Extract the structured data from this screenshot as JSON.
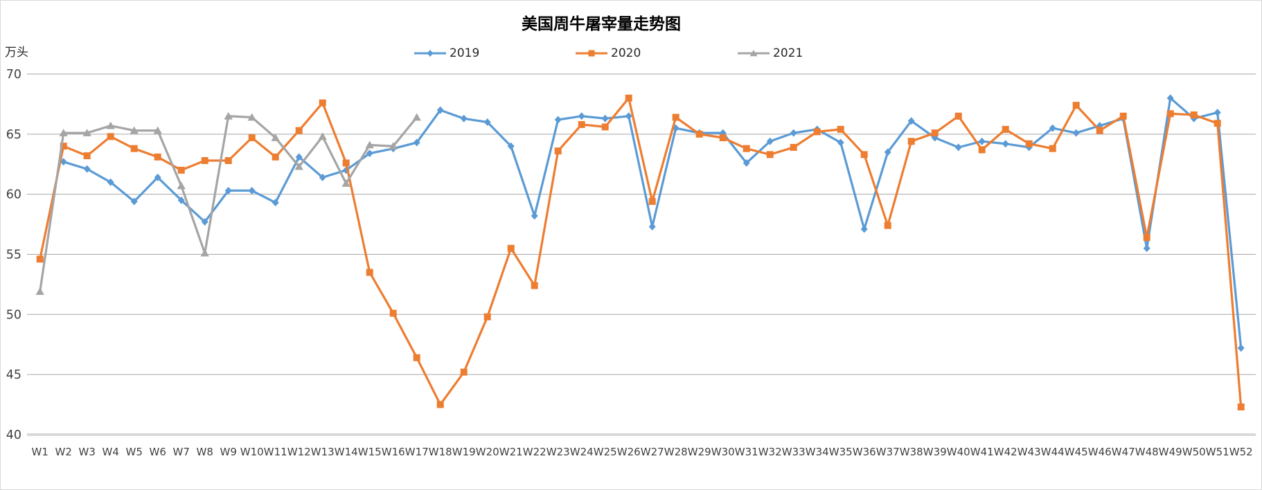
{
  "title": "美国周牛屠宰量走势图",
  "unit_label": "万头",
  "legend": {
    "items": [
      "2019",
      "2020",
      "2021"
    ]
  },
  "colors": {
    "series_2019": "#5B9BD5",
    "series_2020": "#ED7D31",
    "series_2021": "#A5A5A5",
    "gridline": "#A6A6A6",
    "axis_line": "#D9D9D9",
    "tick_text": "#404040"
  },
  "chart_data": {
    "type": "line",
    "title": "美国周牛屠宰量走势图",
    "ylabel": "万头",
    "ylim": [
      40,
      70
    ],
    "yticks": [
      70,
      65,
      60,
      55,
      50,
      45,
      40
    ],
    "grid": true,
    "legend_position": "top",
    "categories": [
      "W1",
      "W2",
      "W3",
      "W4",
      "W5",
      "W6",
      "W7",
      "W8",
      "W9",
      "W10",
      "W11",
      "W12",
      "W13",
      "W14",
      "W15",
      "W16",
      "W17",
      "W18",
      "W19",
      "W20",
      "W21",
      "W22",
      "W23",
      "W24",
      "W25",
      "W26",
      "W27",
      "W28",
      "W29",
      "W30",
      "W31",
      "W32",
      "W33",
      "W34",
      "W35",
      "W36",
      "W37",
      "W38",
      "W39",
      "W40",
      "W41",
      "W42",
      "W43",
      "W44",
      "W45",
      "W46",
      "W47",
      "W48",
      "W49",
      "W50",
      "W51",
      "W52"
    ],
    "series": [
      {
        "name": "2019",
        "color": "#5B9BD5",
        "marker": "diamond",
        "values": [
          null,
          62.7,
          62.1,
          61.0,
          59.4,
          61.4,
          59.5,
          57.7,
          60.3,
          60.3,
          59.3,
          63.1,
          61.4,
          62.0,
          63.4,
          63.8,
          64.3,
          67.0,
          66.3,
          66.0,
          64.0,
          58.2,
          66.2,
          66.5,
          66.3,
          66.5,
          57.3,
          65.5,
          65.1,
          65.1,
          62.6,
          64.4,
          65.1,
          65.4,
          64.3,
          57.1,
          63.5,
          66.1,
          64.7,
          63.9,
          64.4,
          64.2,
          63.9,
          65.5,
          65.1,
          65.7,
          66.3,
          55.5,
          68.0,
          66.3,
          66.8,
          47.2
        ]
      },
      {
        "name": "2020",
        "color": "#ED7D31",
        "marker": "square",
        "values": [
          54.6,
          64.0,
          63.2,
          64.8,
          63.8,
          63.1,
          62.0,
          62.8,
          62.8,
          64.7,
          63.1,
          65.3,
          67.6,
          62.6,
          53.5,
          50.1,
          46.4,
          42.5,
          45.2,
          49.8,
          55.5,
          52.4,
          63.6,
          65.8,
          65.6,
          68.0,
          59.4,
          66.4,
          65.0,
          64.7,
          63.8,
          63.3,
          63.9,
          65.2,
          65.4,
          63.3,
          57.4,
          64.4,
          65.1,
          66.5,
          63.7,
          65.4,
          64.2,
          63.8,
          67.4,
          65.3,
          66.5,
          56.4,
          66.7,
          66.6,
          65.9,
          42.3
        ]
      },
      {
        "name": "2021",
        "color": "#A5A5A5",
        "marker": "triangle",
        "values": [
          51.9,
          65.1,
          65.1,
          65.7,
          65.3,
          65.3,
          60.7,
          55.1,
          66.5,
          66.4,
          64.7,
          62.3,
          64.8,
          60.9,
          64.1,
          64.0,
          66.4,
          null,
          null,
          null,
          null,
          null,
          null,
          null,
          null,
          null,
          null,
          null,
          null,
          null,
          null,
          null,
          null,
          null,
          null,
          null,
          null,
          null,
          null,
          null,
          null,
          null,
          null,
          null,
          null,
          null,
          null,
          null,
          null,
          null,
          null,
          null
        ]
      }
    ]
  }
}
